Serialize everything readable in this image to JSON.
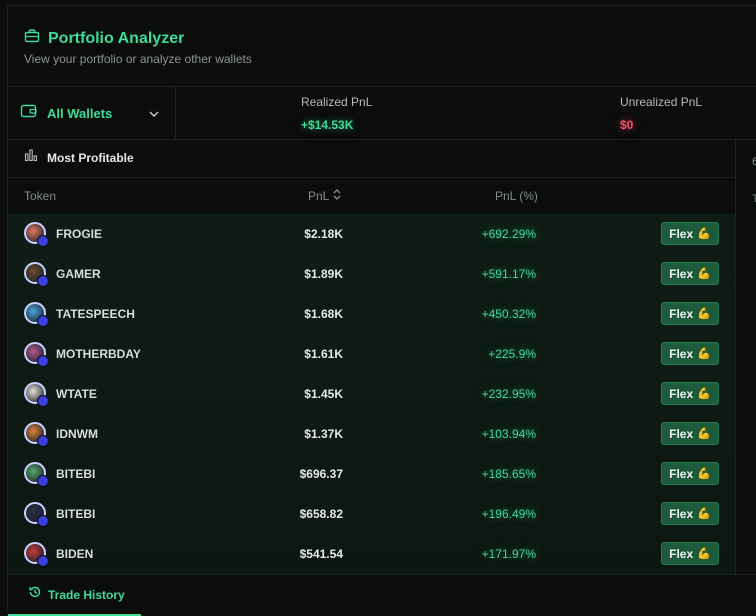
{
  "header": {
    "title": "Portfolio Analyzer",
    "subtitle": "View your portfolio or analyze other wallets"
  },
  "wallet_selector": {
    "label": "All Wallets"
  },
  "stats": {
    "realized": {
      "label": "Realized PnL",
      "value": "+$14.53K"
    },
    "unrealized": {
      "label": "Unrealized PnL",
      "value": "$0"
    }
  },
  "panel": {
    "title": "Most Profitable",
    "columns": {
      "token": "Token",
      "pnl": "PnL",
      "pnl_pct": "PnL (%)"
    },
    "flex_label": "Flex",
    "flex_emoji": "💪",
    "side_peek_a": "6",
    "side_peek_b": "T",
    "rows": [
      {
        "token": "FROGIE",
        "pnl": "$2.18K",
        "pct": "+692.29%",
        "color": "#e07a5f"
      },
      {
        "token": "GAMER",
        "pnl": "$1.89K",
        "pct": "+591.17%",
        "color": "#6b4a2f"
      },
      {
        "token": "TATESPEECH",
        "pnl": "$1.68K",
        "pct": "+450.32%",
        "color": "#4aa3d8"
      },
      {
        "token": "MOTHERBDAY",
        "pnl": "$1.61K",
        "pct": "+225.9%",
        "color": "#b05b8a"
      },
      {
        "token": "WTATE",
        "pnl": "$1.45K",
        "pct": "+232.95%",
        "color": "#e8e2d6"
      },
      {
        "token": "IDNWM",
        "pnl": "$1.37K",
        "pct": "+103.94%",
        "color": "#d8823a"
      },
      {
        "token": "BITEBI",
        "pnl": "$696.37",
        "pct": "+185.65%",
        "color": "#5aa86a"
      },
      {
        "token": "BITEBI",
        "pnl": "$658.82",
        "pct": "+196.49%",
        "color": "#2c2f44"
      },
      {
        "token": "BIDEN",
        "pnl": "$541.54",
        "pct": "+171.97%",
        "color": "#c23b3b"
      }
    ]
  },
  "bottom_tabs": {
    "active": "Trade History"
  }
}
